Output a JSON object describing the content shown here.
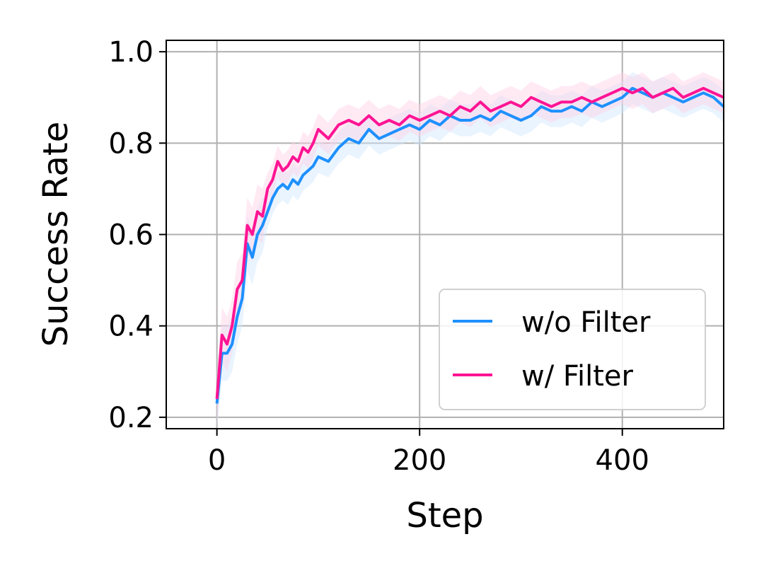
{
  "chart_data": {
    "type": "line",
    "xlabel": "Step",
    "ylabel": "Success Rate",
    "xlim": [
      -50,
      500
    ],
    "ylim": [
      0.175,
      1.025
    ],
    "xticks": [
      0,
      200,
      400
    ],
    "xtick_labels": [
      "0",
      "200",
      "400"
    ],
    "yticks": [
      0.2,
      0.4,
      0.6,
      0.8,
      1.0
    ],
    "ytick_labels": [
      "0.2",
      "0.4",
      "0.6",
      "0.8",
      "1.0"
    ],
    "grid": true,
    "legend": "bottom-right",
    "series": [
      {
        "name": "w/o Filter",
        "color": "#1e90ff",
        "band_color": "#cfe6ff",
        "x": [
          0,
          5,
          10,
          15,
          20,
          25,
          30,
          35,
          40,
          45,
          50,
          55,
          60,
          65,
          70,
          75,
          80,
          85,
          90,
          95,
          100,
          110,
          120,
          130,
          140,
          150,
          160,
          170,
          180,
          190,
          200,
          210,
          220,
          230,
          240,
          250,
          260,
          270,
          280,
          290,
          300,
          310,
          320,
          330,
          340,
          350,
          360,
          370,
          380,
          390,
          400,
          410,
          420,
          430,
          440,
          450,
          460,
          470,
          480,
          490,
          500
        ],
        "y": [
          0.23,
          0.34,
          0.34,
          0.36,
          0.42,
          0.46,
          0.58,
          0.55,
          0.6,
          0.62,
          0.65,
          0.68,
          0.7,
          0.71,
          0.7,
          0.72,
          0.71,
          0.73,
          0.74,
          0.75,
          0.77,
          0.76,
          0.79,
          0.81,
          0.8,
          0.83,
          0.81,
          0.82,
          0.83,
          0.84,
          0.83,
          0.85,
          0.84,
          0.86,
          0.85,
          0.85,
          0.86,
          0.85,
          0.87,
          0.86,
          0.85,
          0.86,
          0.88,
          0.87,
          0.87,
          0.88,
          0.87,
          0.89,
          0.88,
          0.89,
          0.9,
          0.92,
          0.91,
          0.9,
          0.91,
          0.9,
          0.89,
          0.9,
          0.91,
          0.9,
          0.88
        ]
      },
      {
        "name": "w/ Filter",
        "color": "#ff1493",
        "band_color": "#ffd0e6",
        "x": [
          0,
          5,
          10,
          15,
          20,
          25,
          30,
          35,
          40,
          45,
          50,
          55,
          60,
          65,
          70,
          75,
          80,
          85,
          90,
          95,
          100,
          110,
          120,
          130,
          140,
          150,
          160,
          170,
          180,
          190,
          200,
          210,
          220,
          230,
          240,
          250,
          260,
          270,
          280,
          290,
          300,
          310,
          320,
          330,
          340,
          350,
          360,
          370,
          380,
          390,
          400,
          410,
          420,
          430,
          440,
          450,
          460,
          470,
          480,
          490,
          500
        ],
        "y": [
          0.24,
          0.38,
          0.36,
          0.4,
          0.48,
          0.5,
          0.62,
          0.6,
          0.65,
          0.64,
          0.7,
          0.72,
          0.76,
          0.74,
          0.75,
          0.77,
          0.76,
          0.79,
          0.78,
          0.8,
          0.83,
          0.81,
          0.84,
          0.85,
          0.84,
          0.86,
          0.84,
          0.85,
          0.84,
          0.86,
          0.85,
          0.86,
          0.87,
          0.86,
          0.88,
          0.87,
          0.89,
          0.87,
          0.88,
          0.89,
          0.88,
          0.9,
          0.89,
          0.88,
          0.89,
          0.89,
          0.9,
          0.89,
          0.9,
          0.91,
          0.92,
          0.91,
          0.92,
          0.9,
          0.91,
          0.92,
          0.9,
          0.91,
          0.92,
          0.91,
          0.9
        ]
      }
    ]
  }
}
